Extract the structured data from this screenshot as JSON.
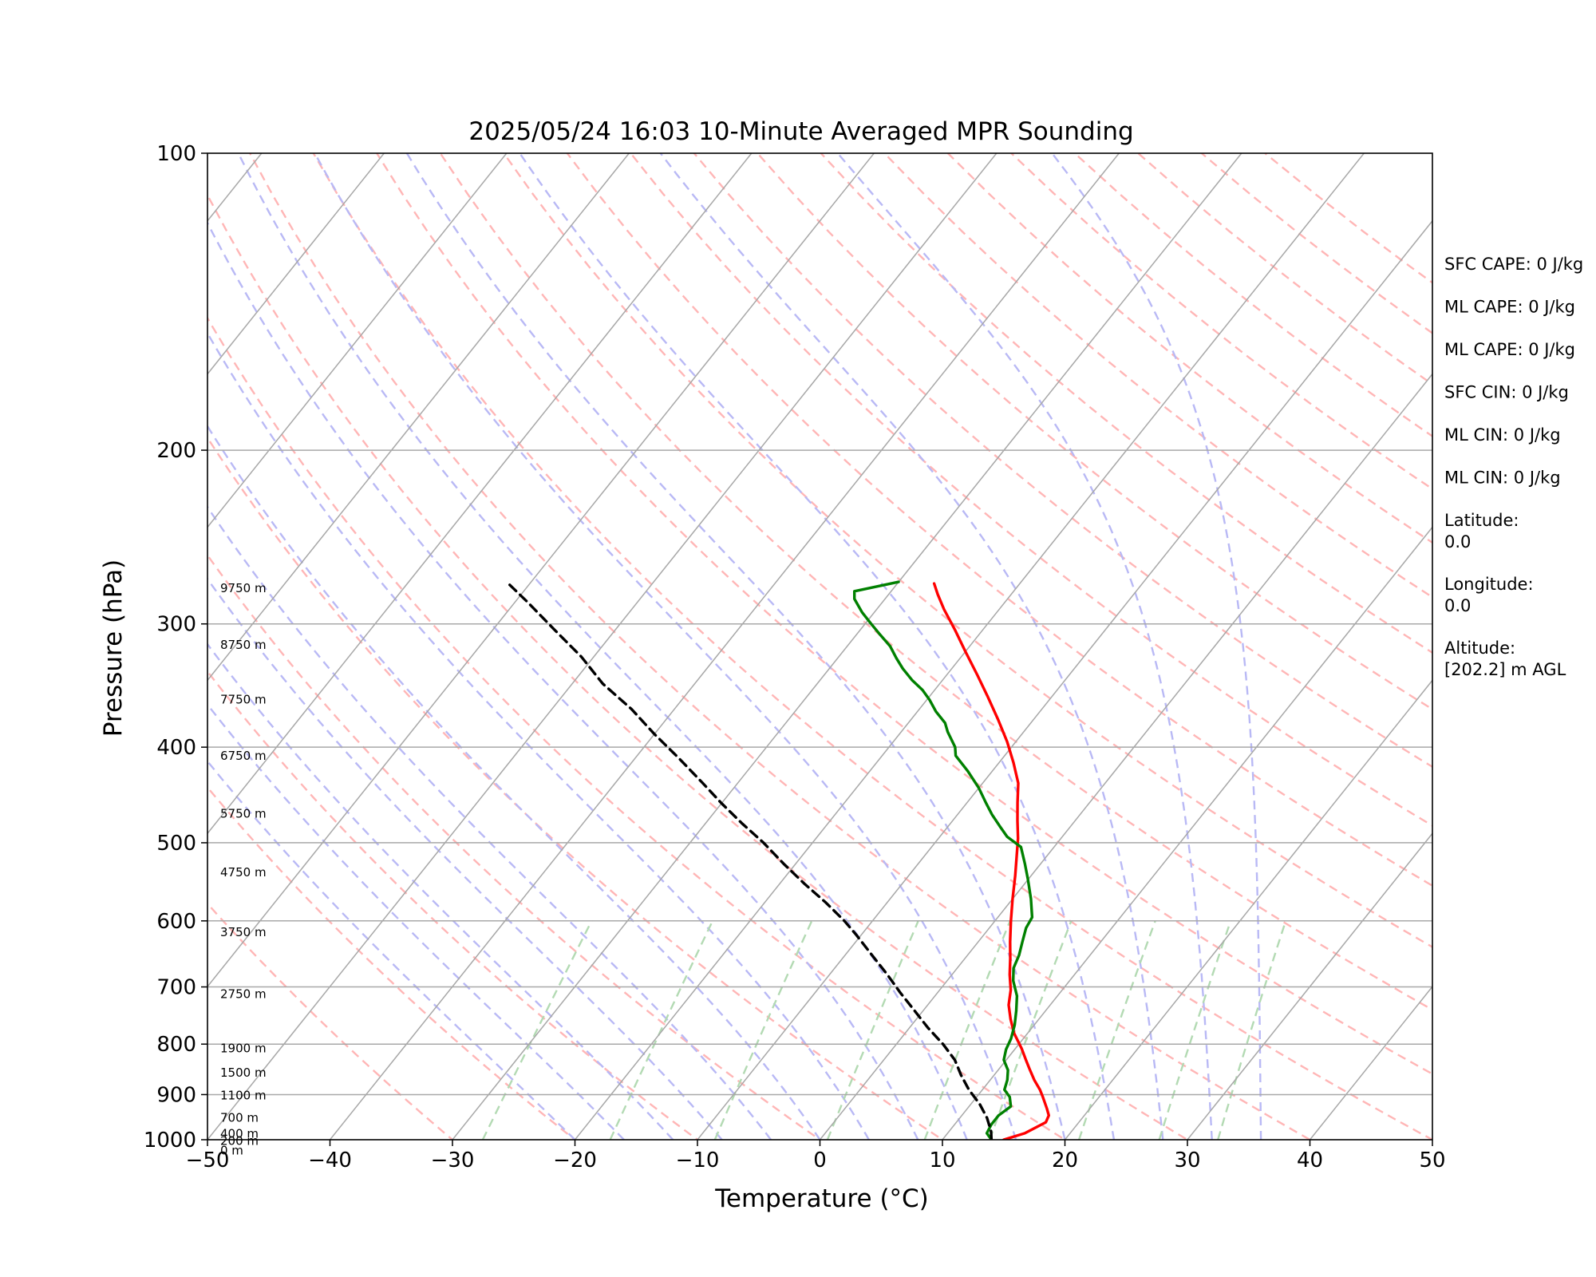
{
  "chart_data": {
    "type": "line",
    "subtype": "skew-t log-p sounding",
    "title": "2025/05/24 16:03 10-Minute Averaged MPR Sounding",
    "xlabel": "Temperature (°C)",
    "ylabel": "Pressure (hPa)",
    "xlim": [
      -50,
      50
    ],
    "ylim": [
      1000,
      100
    ],
    "y_scale": "log",
    "x_ticks": [
      "−50",
      "−40",
      "−30",
      "−20",
      "−10",
      "0",
      "10",
      "20",
      "30",
      "40",
      "50"
    ],
    "x_tick_values": [
      -50,
      -40,
      -30,
      -20,
      -10,
      0,
      10,
      20,
      30,
      40,
      50
    ],
    "y_ticks": [
      "100",
      "200",
      "300",
      "400",
      "500",
      "600",
      "700",
      "800",
      "900",
      "1000"
    ],
    "y_tick_values": [
      100,
      200,
      300,
      400,
      500,
      600,
      700,
      800,
      900,
      1000
    ],
    "grid": true,
    "height_labels": [
      {
        "label": "9750 m",
        "p": 276
      },
      {
        "label": "8750 m",
        "p": 315
      },
      {
        "label": "7750 m",
        "p": 358
      },
      {
        "label": "6750 m",
        "p": 408
      },
      {
        "label": "5750 m",
        "p": 467
      },
      {
        "label": "4750 m",
        "p": 536
      },
      {
        "label": "3750 m",
        "p": 616
      },
      {
        "label": "2750 m",
        "p": 712
      },
      {
        "label": "1900 m",
        "p": 808
      },
      {
        "label": "1500 m",
        "p": 855
      },
      {
        "label": "1100 m",
        "p": 902
      },
      {
        "label": "700 m",
        "p": 950
      },
      {
        "label": "400 m",
        "p": 986
      },
      {
        "label": "200 m",
        "p": 1003
      },
      {
        "label": "0 m",
        "p": 1025
      }
    ],
    "series": [
      {
        "role": "temperature",
        "color": "#ff0000",
        "points": [
          [
            15.0,
            1000
          ],
          [
            16.3,
            985
          ],
          [
            17.3,
            960
          ],
          [
            17.1,
            945
          ],
          [
            16.5,
            930
          ],
          [
            15.4,
            905
          ],
          [
            14.7,
            890
          ],
          [
            13.6,
            870
          ],
          [
            12.5,
            848
          ],
          [
            11.6,
            830
          ],
          [
            10.5,
            808
          ],
          [
            8.9,
            780
          ],
          [
            7.7,
            755
          ],
          [
            6.6,
            730
          ],
          [
            5.8,
            705
          ],
          [
            4.7,
            680
          ],
          [
            3.7,
            655
          ],
          [
            2.6,
            630
          ],
          [
            1.3,
            600
          ],
          [
            0.0,
            570
          ],
          [
            -1.3,
            540
          ],
          [
            -2.5,
            515
          ],
          [
            -3.5,
            495
          ],
          [
            -4.7,
            475
          ],
          [
            -5.9,
            455
          ],
          [
            -7.1,
            435
          ],
          [
            -8.8,
            415
          ],
          [
            -10.7,
            395
          ],
          [
            -12.9,
            375
          ],
          [
            -15.3,
            355
          ],
          [
            -17.5,
            338
          ],
          [
            -20.0,
            320
          ],
          [
            -22.3,
            304
          ],
          [
            -24.5,
            290
          ],
          [
            -26.0,
            280
          ],
          [
            -27.0,
            273
          ]
        ]
      },
      {
        "role": "dewpoint",
        "color": "#008000",
        "points": [
          [
            14.0,
            1000
          ],
          [
            13.2,
            985
          ],
          [
            13.0,
            965
          ],
          [
            13.0,
            945
          ],
          [
            13.4,
            925
          ],
          [
            12.7,
            905
          ],
          [
            11.8,
            890
          ],
          [
            11.4,
            870
          ],
          [
            10.8,
            850
          ],
          [
            9.8,
            830
          ],
          [
            9.3,
            810
          ],
          [
            9.0,
            790
          ],
          [
            8.4,
            765
          ],
          [
            7.6,
            740
          ],
          [
            6.7,
            715
          ],
          [
            5.4,
            690
          ],
          [
            4.6,
            670
          ],
          [
            4.2,
            650
          ],
          [
            3.6,
            630
          ],
          [
            3.0,
            610
          ],
          [
            2.8,
            595
          ],
          [
            1.5,
            570
          ],
          [
            0.0,
            545
          ],
          [
            -1.3,
            525
          ],
          [
            -2.7,
            505
          ],
          [
            -4.5,
            493
          ],
          [
            -5.8,
            481
          ],
          [
            -7.2,
            468
          ],
          [
            -8.5,
            455
          ],
          [
            -10.0,
            440
          ],
          [
            -12.0,
            423
          ],
          [
            -14.0,
            408
          ],
          [
            -14.6,
            400
          ],
          [
            -16.2,
            386
          ],
          [
            -17.0,
            378
          ],
          [
            -18.5,
            368
          ],
          [
            -19.8,
            358
          ],
          [
            -21.0,
            350
          ],
          [
            -22.5,
            342
          ],
          [
            -24.0,
            333
          ],
          [
            -25.2,
            325
          ],
          [
            -26.5,
            316
          ],
          [
            -28.0,
            308
          ],
          [
            -29.5,
            300
          ],
          [
            -31.0,
            292
          ],
          [
            -32.5,
            283
          ],
          [
            -33.0,
            278
          ],
          [
            -30.0,
            272
          ]
        ]
      },
      {
        "role": "parcel",
        "color": "#000000",
        "style": "dashed",
        "points": [
          [
            14.0,
            1000
          ],
          [
            13.4,
            980
          ],
          [
            12.2,
            950
          ],
          [
            10.7,
            920
          ],
          [
            8.9,
            890
          ],
          [
            7.3,
            860
          ],
          [
            5.8,
            830
          ],
          [
            3.8,
            800
          ],
          [
            1.5,
            770
          ],
          [
            -0.7,
            740
          ],
          [
            -3.0,
            710
          ],
          [
            -5.3,
            680
          ],
          [
            -7.8,
            650
          ],
          [
            -10.4,
            620
          ],
          [
            -12.3,
            600
          ],
          [
            -15.0,
            575
          ],
          [
            -18.0,
            550
          ],
          [
            -21.0,
            525
          ],
          [
            -24.0,
            500
          ],
          [
            -27.0,
            478
          ],
          [
            -30.0,
            456
          ],
          [
            -33.0,
            434
          ],
          [
            -36.5,
            410
          ],
          [
            -40.0,
            388
          ],
          [
            -43.5,
            366
          ],
          [
            -47.5,
            345
          ],
          [
            -51.0,
            324
          ],
          [
            -55.0,
            304
          ],
          [
            -59.0,
            285
          ],
          [
            -62.0,
            272
          ]
        ]
      }
    ],
    "stats": [
      {
        "lines": [
          "SFC CAPE: 0 J/kg"
        ]
      },
      {
        "lines": [
          "ML CAPE: 0 J/kg"
        ]
      },
      {
        "lines": [
          "ML CAPE: 0 J/kg"
        ]
      },
      {
        "lines": [
          "SFC CIN: 0 J/kg"
        ]
      },
      {
        "lines": [
          "ML CIN: 0 J/kg"
        ]
      },
      {
        "lines": [
          "ML CIN: 0 J/kg"
        ]
      },
      {
        "lines": [
          "Latitude:",
          "0.0"
        ]
      },
      {
        "lines": [
          "Longitude:",
          "0.0"
        ]
      },
      {
        "lines": [
          "Altitude:",
          "[202.2] m AGL"
        ]
      }
    ],
    "colors": {
      "isotherm": "#a8a8a8",
      "isobar": "#a8a8a8",
      "dry_adiabat": "#ffb6b6",
      "moist_adiabat": "#b9b9f5",
      "mixing_ratio": "#b3dab3"
    }
  }
}
